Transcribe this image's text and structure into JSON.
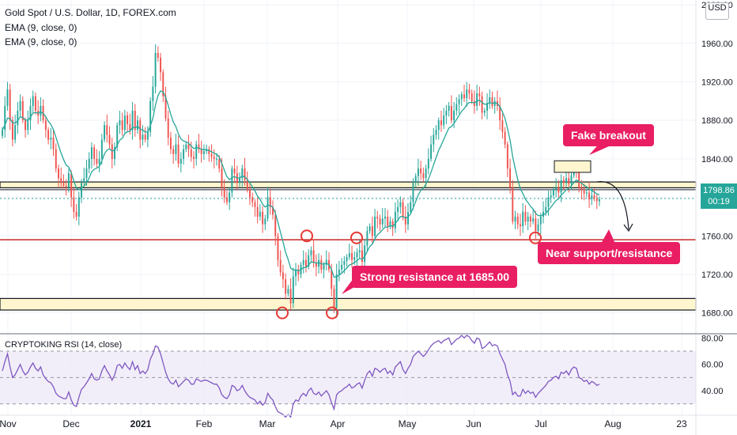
{
  "header": {
    "title": "Gold Spot / U.S. Dollar, 1D, FOREX.com",
    "indicator_1": "EMA (9, close, 0)",
    "indicator_2": "EMA (9, close, 0)",
    "currency": "USD"
  },
  "price_badge": {
    "price": "1798.86",
    "countdown": "00:19"
  },
  "rsi_legend": "CRYPTOKING RSI (14, close)",
  "annotations": {
    "fake_breakout": "Fake breakout",
    "near_support": "Near support/resistance",
    "strong_resistance": "Strong resistance at 1685.00"
  },
  "colors": {
    "up": "#26a69a",
    "down": "#ef5350",
    "ema": "#26a69a",
    "callout": "#e91e63",
    "zone": "#fff6cf",
    "rsi": "#7e57c2"
  },
  "chart_data": {
    "type": "candlestick",
    "price_ticks": [
      "2000.00",
      "1960.00",
      "1920.00",
      "1880.00",
      "1840.00",
      "1800.00",
      "1760.00",
      "1720.00",
      "1680.00"
    ],
    "rsi_ticks": [
      "80.00",
      "60.00",
      "40.00"
    ],
    "x_ticks": [
      "Nov",
      "Dec",
      "2021",
      "Feb",
      "Mar",
      "Apr",
      "May",
      "Jun",
      "Jul",
      "Aug",
      "23"
    ],
    "ylim": [
      1660,
      2005
    ],
    "rsi_ylim": [
      22,
      82
    ],
    "levels": [
      {
        "name": "resistance-zone",
        "low": 1810,
        "high": 1816
      },
      {
        "name": "support-line",
        "value": 1756
      },
      {
        "name": "strong-resistance-zone",
        "low": 1683,
        "high": 1695
      }
    ],
    "close_series": [
      1870,
      1895,
      1912,
      1880,
      1860,
      1875,
      1890,
      1900,
      1880,
      1870,
      1880,
      1895,
      1905,
      1890,
      1885,
      1895,
      1880,
      1870,
      1860,
      1862,
      1850,
      1830,
      1820,
      1815,
      1812,
      1810,
      1825,
      1800,
      1785,
      1780,
      1800,
      1815,
      1820,
      1830,
      1840,
      1852,
      1840,
      1835,
      1840,
      1860,
      1875,
      1865,
      1855,
      1840,
      1852,
      1875,
      1880,
      1870,
      1885,
      1876,
      1870,
      1890,
      1870,
      1880,
      1860,
      1865,
      1860,
      1868,
      1900,
      1915,
      1950,
      1945,
      1930,
      1905,
      1882,
      1862,
      1850,
      1845,
      1855,
      1835,
      1840,
      1850,
      1855,
      1850,
      1842,
      1840,
      1855,
      1850,
      1845,
      1848,
      1850,
      1845,
      1842,
      1840,
      1840,
      1830,
      1810,
      1800,
      1795,
      1805,
      1830,
      1825,
      1815,
      1820,
      1830,
      1818,
      1808,
      1800,
      1795,
      1790,
      1780,
      1785,
      1772,
      1778,
      1800,
      1790,
      1782,
      1760,
      1735,
      1722,
      1715,
      1700,
      1705,
      1690,
      1718,
      1725,
      1720,
      1730,
      1735,
      1728,
      1740,
      1745,
      1732,
      1728,
      1735,
      1725,
      1730,
      1735,
      1725,
      1705,
      1685,
      1720,
      1725,
      1730,
      1734,
      1738,
      1742,
      1735,
      1738,
      1743,
      1745,
      1733,
      1750,
      1765,
      1770,
      1760,
      1780,
      1778,
      1772,
      1778,
      1780,
      1770,
      1775,
      1768,
      1785,
      1790,
      1795,
      1780,
      1772,
      1785,
      1795,
      1815,
      1822,
      1830,
      1825,
      1820,
      1830,
      1840,
      1855,
      1865,
      1870,
      1880,
      1875,
      1885,
      1890,
      1895,
      1880,
      1890,
      1897,
      1902,
      1907,
      1903,
      1912,
      1908,
      1900,
      1895,
      1908,
      1905,
      1888,
      1890,
      1898,
      1904,
      1895,
      1900,
      1895,
      1880,
      1868,
      1855,
      1830,
      1810,
      1775,
      1780,
      1772,
      1770,
      1785,
      1775,
      1780,
      1775,
      1778,
      1765,
      1772,
      1780,
      1785,
      1790,
      1800,
      1802,
      1808,
      1810,
      1805,
      1818,
      1815,
      1820,
      1814,
      1823,
      1830,
      1828,
      1810,
      1808,
      1804,
      1805,
      1798,
      1802,
      1799,
      1796,
      1798
    ],
    "rsi_series": [
      55,
      62,
      68,
      58,
      50,
      52,
      56,
      60,
      55,
      52,
      54,
      58,
      61,
      57,
      55,
      58,
      52,
      49,
      47,
      46,
      43,
      38,
      36,
      35,
      34,
      34,
      39,
      33,
      29,
      28,
      35,
      41,
      43,
      46,
      49,
      53,
      49,
      48,
      49,
      55,
      59,
      55,
      52,
      48,
      52,
      59,
      60,
      57,
      61,
      58,
      56,
      62,
      56,
      59,
      53,
      55,
      53,
      56,
      64,
      68,
      74,
      73,
      68,
      61,
      54,
      49,
      46,
      45,
      48,
      43,
      45,
      47,
      49,
      48,
      45,
      45,
      49,
      48,
      47,
      48,
      48,
      47,
      46,
      45,
      45,
      42,
      37,
      35,
      34,
      37,
      44,
      43,
      40,
      41,
      44,
      40,
      37,
      35,
      34,
      33,
      30,
      32,
      29,
      31,
      38,
      35,
      33,
      28,
      24,
      23,
      22,
      20,
      22,
      20,
      30,
      33,
      32,
      36,
      38,
      36,
      40,
      42,
      38,
      37,
      39,
      36,
      38,
      40,
      37,
      31,
      26,
      37,
      39,
      40,
      42,
      43,
      45,
      42,
      43,
      45,
      46,
      42,
      48,
      53,
      55,
      51,
      57,
      56,
      54,
      56,
      57,
      53,
      55,
      52,
      58,
      60,
      62,
      56,
      53,
      57,
      60,
      66,
      68,
      70,
      68,
      66,
      68,
      71,
      74,
      76,
      77,
      78,
      76,
      78,
      79,
      80,
      75,
      77,
      79,
      80,
      82,
      80,
      82,
      81,
      78,
      76,
      80,
      79,
      72,
      73,
      75,
      77,
      74,
      75,
      74,
      68,
      64,
      60,
      52,
      47,
      37,
      39,
      36,
      36,
      41,
      38,
      40,
      38,
      39,
      35,
      38,
      40,
      42,
      44,
      47,
      48,
      50,
      51,
      49,
      54,
      53,
      55,
      52,
      56,
      58,
      57,
      50,
      49,
      47,
      48,
      45,
      47,
      46,
      44,
      45
    ]
  }
}
